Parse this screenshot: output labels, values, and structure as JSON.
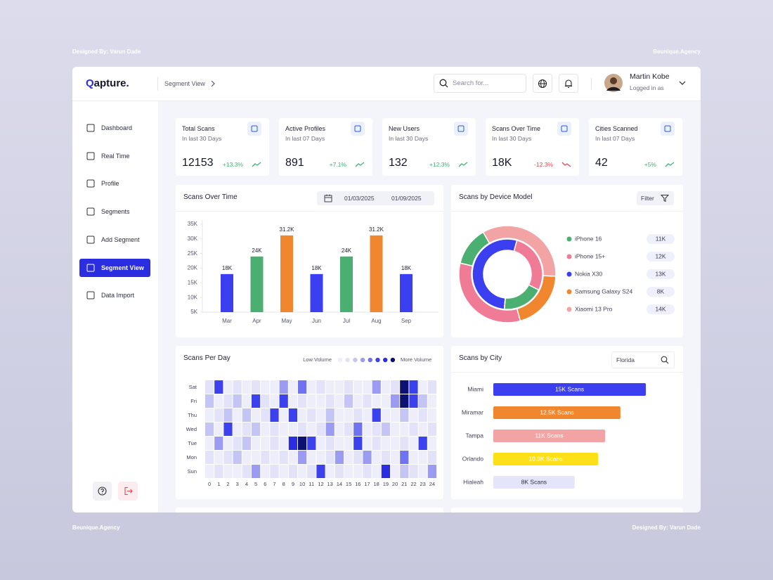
{
  "credits": {
    "top_left": "Designed By: Varun Dade",
    "top_right": "Beunique.Agency",
    "bottom_left": "Beunique.Agency",
    "bottom_right": "Designed By: Varun Dade"
  },
  "header": {
    "logo": "Qapture.",
    "breadcrumb": "Segment View",
    "search_placeholder": "Search for...",
    "user_name": "Martin Kobe",
    "user_status": "Logged in as"
  },
  "sidebar": {
    "items": [
      "Dashboard",
      "Real Time",
      "Profile",
      "Segments",
      "Add Segment",
      "Segment View",
      "Data Import"
    ],
    "active": 5
  },
  "stats": [
    {
      "title": "Total Scans",
      "period": "In last 30 Days",
      "value": 12153,
      "change": "+13.3%",
      "change_color": "#3cb371"
    },
    {
      "title": "Active Profiles",
      "period": "In last 07 Days",
      "value": 891,
      "change": "+7.1%",
      "change_color": "#3cb371"
    },
    {
      "title": "New Users",
      "period": "In last 30 Days",
      "value": 132,
      "change": "+12.3%",
      "change_color": "#3cb371"
    },
    {
      "title": "Scans Over Time",
      "period": "In last 30 Days",
      "value": "18K",
      "change": "-12.3%",
      "change_color": "#e5484d"
    },
    {
      "title": "Cities Scanned",
      "period": "In last 07 Days",
      "value": 42,
      "change": "+5%",
      "change_color": "#3cb371"
    }
  ],
  "chart_data": [
    {
      "type": "bar",
      "title": "Scans Over Time",
      "date_from": "01/03/2025",
      "date_to": "01/09/2025",
      "categories": [
        "Mar",
        "Apr",
        "May",
        "Jun",
        "Jul",
        "Aug",
        "Sep"
      ],
      "values": [
        18000,
        24000,
        31200,
        18000,
        24000,
        31200,
        18000
      ],
      "value_labels": [
        "18K",
        "24K",
        "31.2K",
        "18K",
        "24K",
        "31.2K",
        "18K"
      ],
      "colors": [
        "#3b3ff0",
        "#4caf72",
        "#f0862e",
        "#3b3ff0",
        "#4caf72",
        "#f0862e",
        "#3b3ff0"
      ],
      "ylim": [
        5000,
        35000
      ],
      "yticks": [
        {
          "value": 5000,
          "label": "5K"
        },
        {
          "value": 10000,
          "label": "10K"
        },
        {
          "value": 15000,
          "label": "15K"
        },
        {
          "value": 20000,
          "label": "20K"
        },
        {
          "value": 25000,
          "label": "25K"
        },
        {
          "value": 30000,
          "label": "30K"
        },
        {
          "value": 35000,
          "label": "35K"
        }
      ]
    },
    {
      "type": "donut",
      "title": "Scans by Device Model",
      "filter_label": "Filter",
      "categories": [
        "iPhone 16",
        "iPhone 15+",
        "Nokia X30",
        "Samsung Galaxy S24",
        "Xiaomi 13 Pro"
      ],
      "values": [
        11000,
        12000,
        13000,
        8000,
        14000
      ],
      "value_labels": [
        "11K",
        "12K",
        "13K",
        "8K",
        "14K"
      ],
      "colors": [
        "#4caf72",
        "#ef7b96",
        "#3b3ff0",
        "#f0862e",
        "#f2a3a3"
      ],
      "rings": [
        {
          "values": [
            13,
            33,
            0,
            20,
            34
          ]
        },
        {
          "values": [
            19,
            28,
            53,
            0,
            0
          ]
        }
      ]
    },
    {
      "type": "heatmap",
      "title": "Scans Per Day",
      "legend_low": "Low Volume",
      "legend_high": "More Volume",
      "rows": [
        "Sat",
        "Fri",
        "Thu",
        "Wed",
        "Tue",
        "Mon",
        "Sun"
      ],
      "columns": [
        0,
        1,
        2,
        3,
        4,
        5,
        6,
        7,
        8,
        9,
        10,
        11,
        12,
        13,
        14,
        15,
        16,
        17,
        18,
        19,
        20,
        21,
        22,
        23,
        24
      ],
      "levels": [
        "#eeeefb",
        "#e2e2f8",
        "#c4c5f5",
        "#9a9cf2",
        "#6f73f0",
        "#3c41ee",
        "#2a2ee0",
        "#0c1070"
      ],
      "values": [
        [
          1,
          5,
          0,
          1,
          0,
          1,
          0,
          0,
          3,
          0,
          4,
          0,
          1,
          0,
          0,
          1,
          0,
          0,
          3,
          0,
          1,
          7,
          5,
          0,
          1
        ],
        [
          2,
          0,
          1,
          2,
          0,
          5,
          1,
          0,
          5,
          0,
          1,
          0,
          0,
          1,
          0,
          2,
          0,
          1,
          0,
          0,
          3,
          7,
          5,
          2,
          0
        ],
        [
          0,
          1,
          2,
          0,
          2,
          0,
          1,
          5,
          0,
          5,
          0,
          1,
          0,
          2,
          0,
          0,
          1,
          0,
          5,
          0,
          0,
          2,
          0,
          1,
          0
        ],
        [
          2,
          0,
          5,
          0,
          1,
          2,
          0,
          1,
          0,
          0,
          1,
          0,
          1,
          3,
          0,
          1,
          4,
          0,
          1,
          2,
          0,
          0,
          1,
          0,
          1
        ],
        [
          0,
          3,
          0,
          1,
          2,
          0,
          0,
          1,
          0,
          6,
          7,
          5,
          0,
          1,
          0,
          0,
          5,
          0,
          1,
          0,
          0,
          1,
          0,
          5,
          0
        ],
        [
          1,
          0,
          1,
          2,
          0,
          0,
          1,
          0,
          1,
          0,
          3,
          0,
          0,
          1,
          3,
          0,
          1,
          3,
          0,
          1,
          0,
          4,
          0,
          0,
          1
        ],
        [
          0,
          1,
          0,
          0,
          1,
          3,
          0,
          1,
          0,
          1,
          0,
          1,
          5,
          0,
          1,
          0,
          0,
          1,
          0,
          6,
          0,
          2,
          1,
          0,
          3
        ]
      ]
    },
    {
      "type": "hbar",
      "title": "Scans by City",
      "search_value": "Florida",
      "categories": [
        "Miami",
        "Miramar",
        "Tampa",
        "Orlando",
        "Hialeah"
      ],
      "values": [
        15000,
        12500,
        11000,
        10300,
        8000
      ],
      "value_labels": [
        "15K Scans",
        "12.5K Scans",
        "11K Scans",
        "10.3K Scans",
        "8K Scans"
      ],
      "colors": [
        "#3b3ff0",
        "#f0862e",
        "#f2a3a3",
        "#fde017",
        "#e4e4fa"
      ],
      "label_colors": [
        "#ffffff",
        "#ffffff",
        "#ffffff",
        "#ffffff",
        "#2b2d42"
      ]
    }
  ]
}
